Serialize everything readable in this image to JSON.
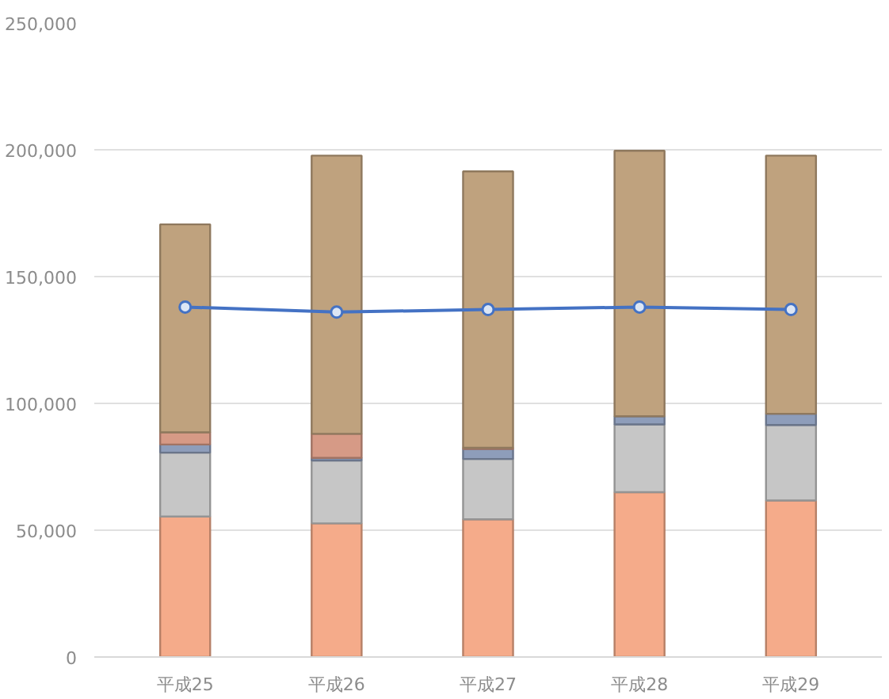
{
  "chart_data": {
    "type": "bar",
    "stacked": true,
    "categories": [
      "平成25",
      "平成26",
      "平成27",
      "平成28",
      "平成29"
    ],
    "ylim": [
      0,
      250000
    ],
    "yticks": [
      {
        "value": 0,
        "label": "0"
      },
      {
        "value": 50000,
        "label": "50,000"
      },
      {
        "value": 100000,
        "label": "100,000"
      },
      {
        "value": 150000,
        "label": "150,000"
      },
      {
        "value": 200000,
        "label": "200,000"
      },
      {
        "value": 250000,
        "label": "250,000"
      }
    ],
    "grid": "y",
    "series": [
      {
        "color": "#f5ab8a",
        "values": [
          55400,
          52700,
          54300,
          65000,
          61700
        ]
      },
      {
        "color": "#c6c6c6",
        "values": [
          25200,
          24800,
          23800,
          26700,
          29800
        ]
      },
      {
        "color": "#8e9dba",
        "values": [
          3200,
          1000,
          3900,
          3200,
          4400
        ]
      },
      {
        "color": "#d69a86",
        "values": [
          4800,
          9500,
          500,
          null,
          null
        ]
      },
      {
        "color": "#bfa27e",
        "values": [
          82000,
          109700,
          109000,
          104700,
          101800
        ]
      },
      {
        "type": "line",
        "color": "#4472c4",
        "marker": "circle",
        "values": [
          138000,
          136000,
          137000,
          138000,
          137000
        ]
      }
    ]
  }
}
